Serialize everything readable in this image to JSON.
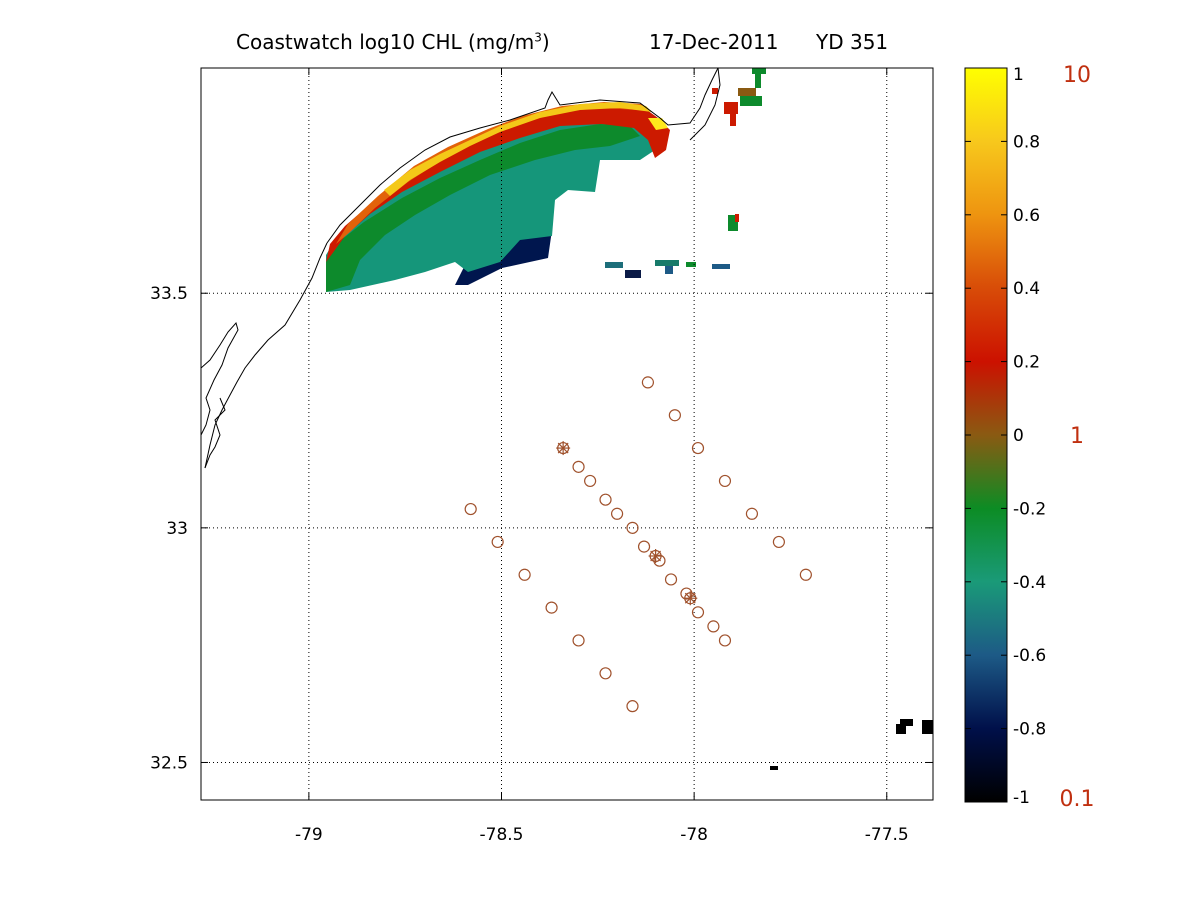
{
  "title": {
    "product": "Coastwatch  log10  CHL (mg/m",
    "superscript": "3",
    "close": ")",
    "date": "17-Dec-2011",
    "yearday": "YD 351"
  },
  "map": {
    "x_ticks": [
      "-79",
      "-78.5",
      "-78",
      "-77.5"
    ],
    "x_tick_values": [
      -79,
      -78.5,
      -78,
      -77.5
    ],
    "y_ticks": [
      "33.5",
      "33",
      "32.5"
    ],
    "y_tick_values": [
      33.5,
      33,
      32.5
    ],
    "xlim": [
      -79.28,
      -77.38
    ],
    "ylim": [
      32.42,
      33.98
    ],
    "grid": true,
    "station_color": "#a0522d",
    "stations": [
      [
        -78.12,
        33.31
      ],
      [
        -78.05,
        33.24
      ],
      [
        -77.99,
        33.17
      ],
      [
        -77.92,
        33.1
      ],
      [
        -77.85,
        33.03
      ],
      [
        -77.78,
        32.97
      ],
      [
        -77.71,
        32.9
      ],
      [
        -78.34,
        33.17
      ],
      [
        -78.3,
        33.13
      ],
      [
        -78.27,
        33.1
      ],
      [
        -78.23,
        33.06
      ],
      [
        -78.2,
        33.03
      ],
      [
        -78.16,
        33.0
      ],
      [
        -78.13,
        32.96
      ],
      [
        -78.1,
        32.94
      ],
      [
        -78.09,
        32.93
      ],
      [
        -78.06,
        32.89
      ],
      [
        -78.02,
        32.86
      ],
      [
        -78.01,
        32.85
      ],
      [
        -77.99,
        32.82
      ],
      [
        -77.95,
        32.79
      ],
      [
        -77.92,
        32.76
      ],
      [
        -78.58,
        33.04
      ],
      [
        -78.51,
        32.97
      ],
      [
        -78.44,
        32.9
      ],
      [
        -78.37,
        32.83
      ],
      [
        -78.3,
        32.76
      ],
      [
        -78.23,
        32.69
      ],
      [
        -78.16,
        32.62
      ]
    ],
    "starred_stations": [
      [
        -78.34,
        33.17
      ],
      [
        -78.1,
        32.94
      ],
      [
        -78.01,
        32.85
      ]
    ]
  },
  "colorbar": {
    "ticks": [
      "1",
      "0.8",
      "0.6",
      "0.4",
      "0.2",
      "0",
      "-0.2",
      "-0.4",
      "-0.6",
      "-0.8",
      "-1"
    ],
    "tick_values": [
      1,
      0.8,
      0.6,
      0.4,
      0.2,
      0,
      -0.2,
      -0.4,
      -0.6,
      -0.8,
      -1
    ],
    "range": [
      -1,
      1
    ],
    "colors": [
      "#000000",
      "#00104a",
      "#1d5a86",
      "#1a9a78",
      "#0c8c24",
      "#8a5a12",
      "#cc1100",
      "#d84c08",
      "#ee9410",
      "#f7c81c",
      "#ffff00"
    ],
    "linear_labels": [
      "10",
      "1",
      "0.1"
    ],
    "linear_label_values": [
      1,
      0,
      -1
    ],
    "linear_label_color": "#c03010"
  }
}
